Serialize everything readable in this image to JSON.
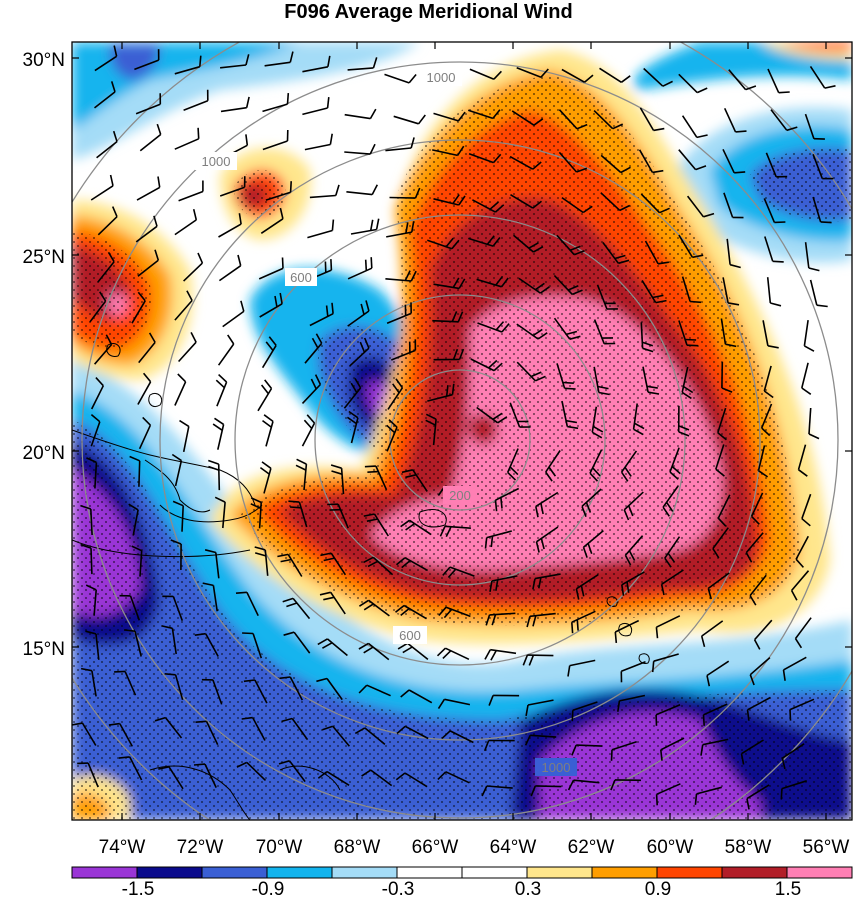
{
  "title": "F096 Average Meridional Wind",
  "lat_labels": [
    "30°N",
    "25°N",
    "20°N",
    "15°N"
  ],
  "lon_labels": [
    "74°W",
    "72°W",
    "70°W",
    "68°W",
    "66°W",
    "64°W",
    "62°W",
    "60°W",
    "58°W",
    "56°W"
  ],
  "ring_labels": [
    "200",
    "600",
    "1000"
  ],
  "colorbar": {
    "labels": [
      "-1.5",
      "-0.9",
      "-0.3",
      "0.3",
      "0.9",
      "1.5"
    ],
    "colors": [
      "#9a35d6",
      "#0a0a8c",
      "#3a5fd4",
      "#12b4ee",
      "#a4dcf7",
      "#ffffff",
      "#ffffff",
      "#ffe68c",
      "#ff9e00",
      "#ff4500",
      "#b21e28",
      "#ff7fb4"
    ]
  },
  "palette": {
    "deep_purple": "#9a35d6",
    "navy": "#0a0a8c",
    "royal_blue": "#3a5fd4",
    "cyan": "#12b4ee",
    "light_blue": "#a4dcf7",
    "pale_yellow": "#ffe68c",
    "orange": "#ff9e00",
    "red_orange": "#ff4500",
    "dark_red": "#b21e28",
    "pink": "#ff7fb4",
    "ring_gray": "#8c8c8c"
  }
}
